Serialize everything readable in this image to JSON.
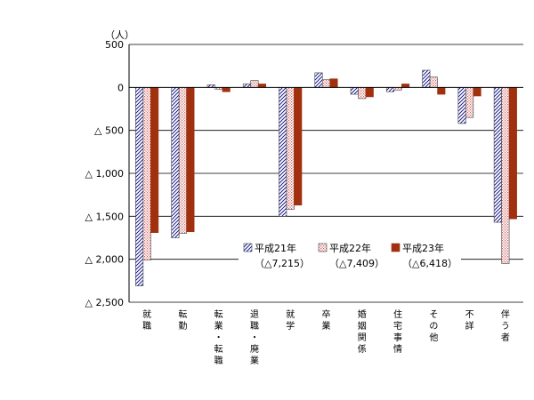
{
  "chart_data": {
    "type": "bar",
    "unit": "（人）",
    "ylim": [
      -2500,
      500
    ],
    "y_ticks": [
      {
        "value": 500,
        "label": "500"
      },
      {
        "value": 0,
        "label": "0"
      },
      {
        "value": -500,
        "label": "△ 500"
      },
      {
        "value": -1000,
        "label": "△ 1,000"
      },
      {
        "value": -1500,
        "label": "△ 1,500"
      },
      {
        "value": -2000,
        "label": "△ 2,000"
      },
      {
        "value": -2500,
        "label": "△ 2,500"
      }
    ],
    "grid": true,
    "categories": [
      [
        "就",
        "職"
      ],
      [
        "転",
        "勤"
      ],
      [
        "転",
        "業",
        "・",
        "転",
        "職"
      ],
      [
        "退",
        "職",
        "・",
        "廃",
        "業"
      ],
      [
        "就",
        "学"
      ],
      [
        "卒",
        "業"
      ],
      [
        "婚",
        "姻",
        "関",
        "係"
      ],
      [
        "住",
        "宅",
        "事",
        "情"
      ],
      [
        "そ",
        "の",
        "他"
      ],
      [
        "不",
        "詳"
      ],
      [
        "伴",
        "う",
        "者"
      ]
    ],
    "legend_position": "center-right",
    "series": [
      {
        "name": "平成21年",
        "total": "（△7,215）",
        "pattern": "hatch-diagonal",
        "color": "#000080",
        "values": [
          -2310,
          -1750,
          30,
          40,
          -1500,
          170,
          -80,
          -50,
          200,
          -420,
          -1570
        ]
      },
      {
        "name": "平成22年",
        "total": "（△7,409）",
        "pattern": "dots",
        "color": "#d08080",
        "values": [
          -2010,
          -1700,
          -20,
          80,
          -1420,
          90,
          -130,
          -30,
          120,
          -350,
          -2050
        ]
      },
      {
        "name": "平成23年",
        "total": "（△6,418）",
        "pattern": "solid",
        "color": "#a0300e",
        "values": [
          -1690,
          -1680,
          -50,
          40,
          -1370,
          100,
          -110,
          40,
          -80,
          -100,
          -1530
        ]
      }
    ]
  }
}
